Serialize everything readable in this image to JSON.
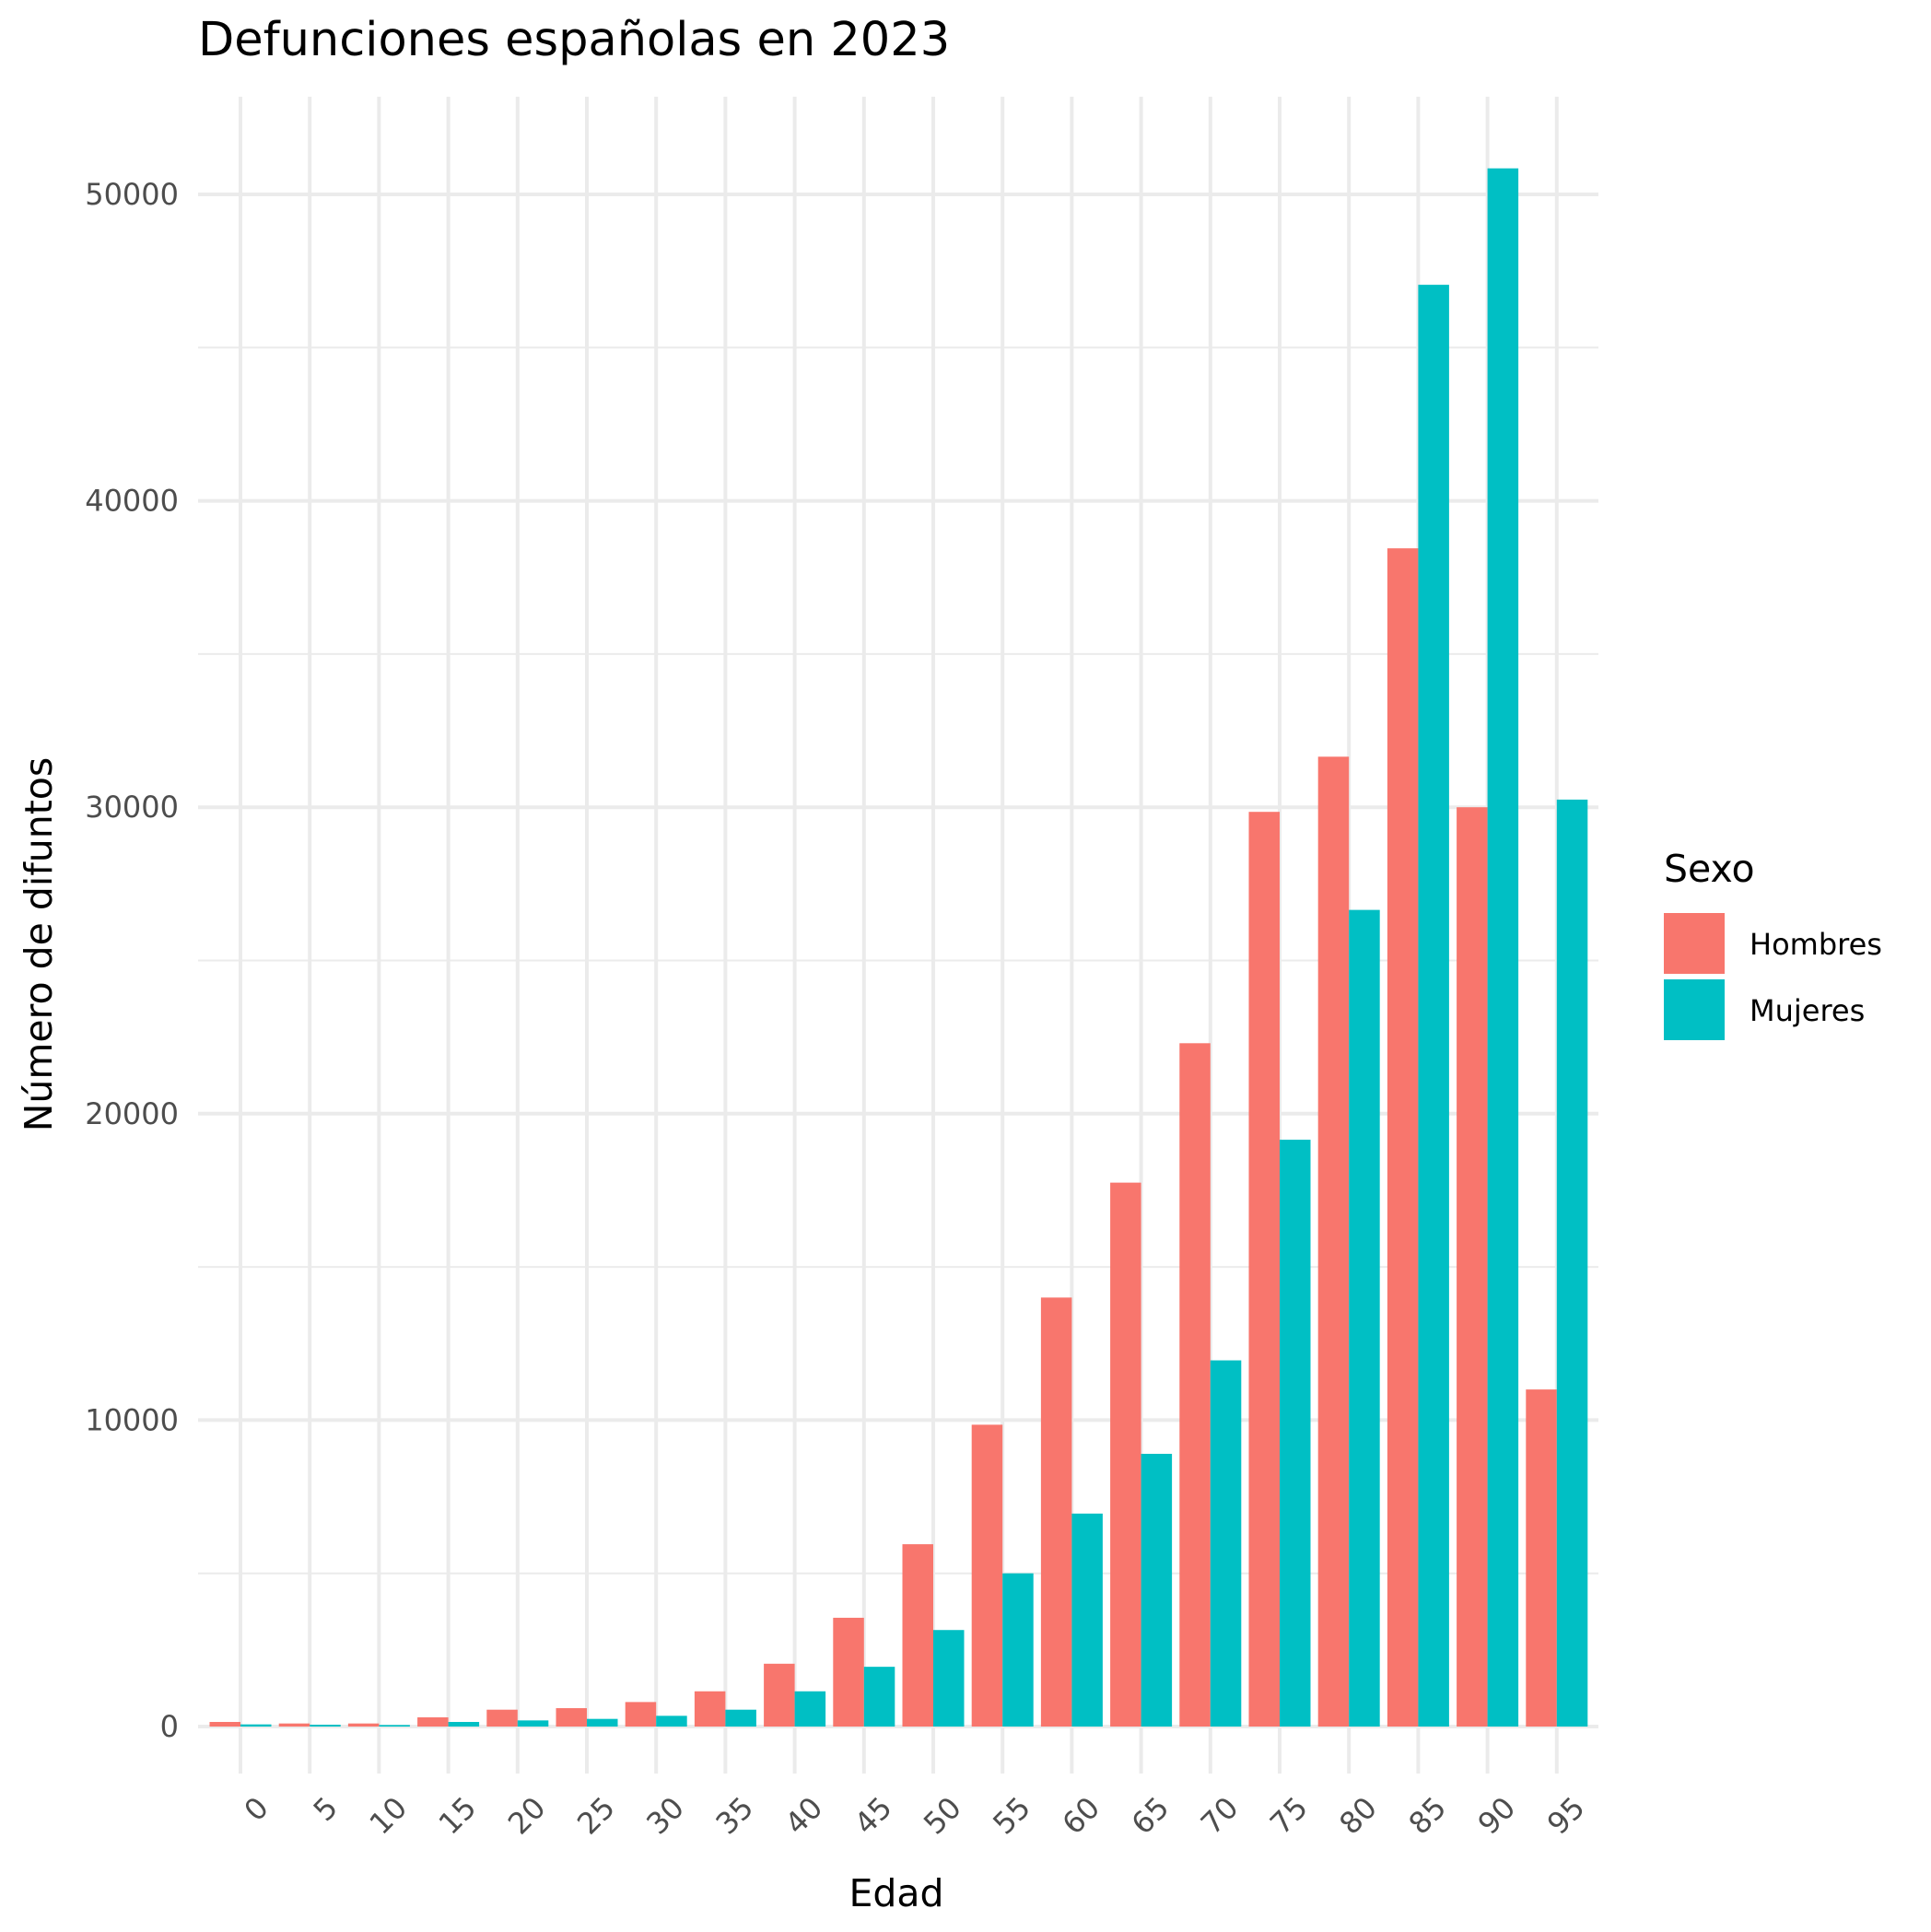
{
  "chart_data": {
    "type": "bar",
    "title": "Defunciones españolas en 2023",
    "xlabel": "Edad",
    "ylabel": "Número de difuntos",
    "categories": [
      "0",
      "5",
      "10",
      "15",
      "20",
      "25",
      "30",
      "35",
      "40",
      "45",
      "50",
      "55",
      "60",
      "65",
      "70",
      "75",
      "80",
      "85",
      "90",
      "95"
    ],
    "series": [
      {
        "name": "Hombres",
        "color": "#F8766D",
        "values": [
          150,
          100,
          100,
          300,
          550,
          600,
          800,
          1150,
          2050,
          3550,
          5950,
          9850,
          14000,
          17750,
          22300,
          29850,
          31650,
          38450,
          30000,
          11000
        ]
      },
      {
        "name": "Mujeres",
        "color": "#00BFC4",
        "values": [
          70,
          60,
          50,
          150,
          200,
          250,
          350,
          550,
          1150,
          1950,
          3150,
          5000,
          6950,
          8900,
          11950,
          19150,
          26650,
          47050,
          50850,
          30250
        ]
      }
    ],
    "yticks": [
      0,
      10000,
      20000,
      30000,
      40000,
      50000
    ],
    "ylim": [
      -2000,
      53500
    ],
    "grid": true,
    "legend": {
      "title": "Sexo",
      "position": "right",
      "entries": [
        "Hombres",
        "Mujeres"
      ]
    }
  }
}
